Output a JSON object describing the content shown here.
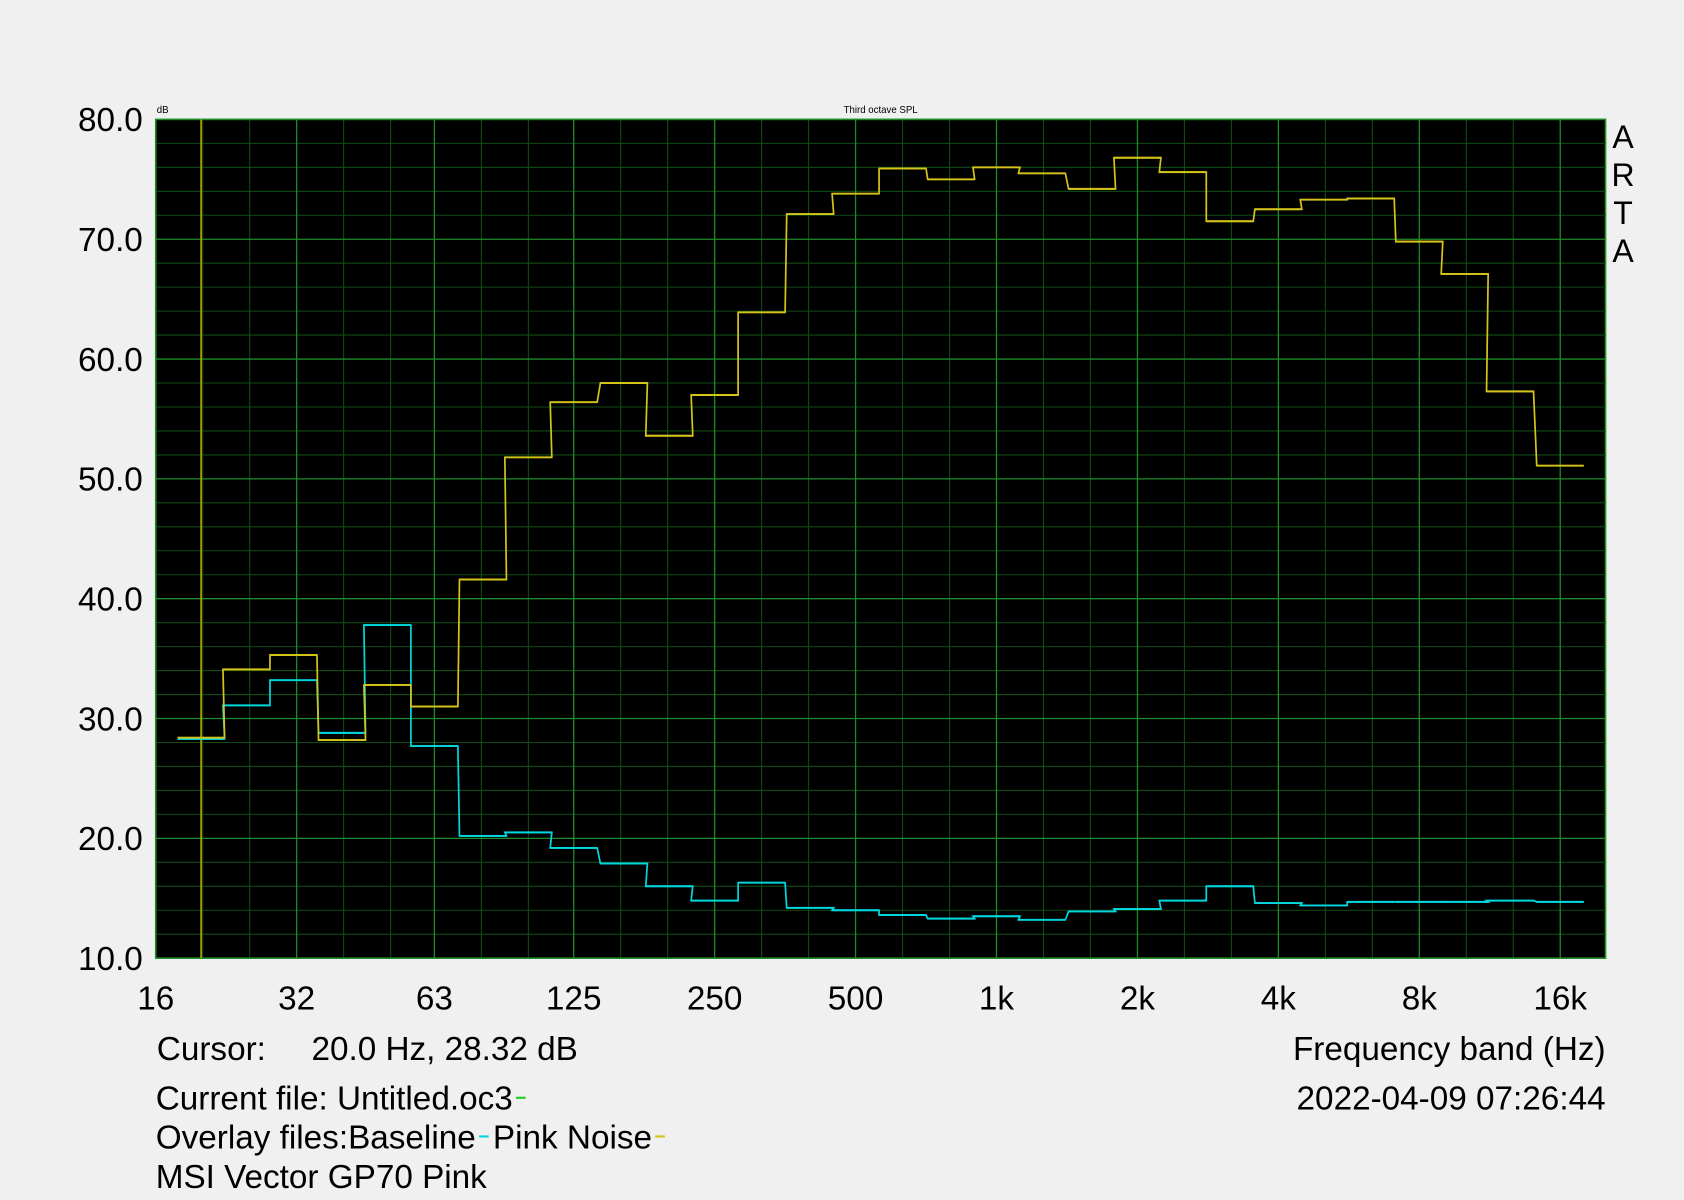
{
  "chart_data": {
    "type": "step",
    "title": "Third octave SPL",
    "y_unit": "dB",
    "xlabel": "Frequency band (Hz)",
    "watermark": "ARTA",
    "x_scale": "log",
    "grid": true,
    "xlim": [
      16,
      20000
    ],
    "ylim": [
      10,
      80
    ],
    "xticks": [
      16,
      32,
      63,
      125,
      250,
      500,
      {
        "value": 1000,
        "label": "1k"
      },
      {
        "value": 2000,
        "label": "2k"
      },
      {
        "value": 4000,
        "label": "4k"
      },
      {
        "value": 8000,
        "label": "8k"
      },
      {
        "value": 16000,
        "label": "16k"
      }
    ],
    "yticks": [
      {
        "value": 10,
        "label": "10.0"
      },
      {
        "value": 20,
        "label": "20.0"
      },
      {
        "value": 30,
        "label": "30.0"
      },
      {
        "value": 40,
        "label": "40.0"
      },
      {
        "value": 50,
        "label": "50.0"
      },
      {
        "value": 60,
        "label": "60.0"
      },
      {
        "value": 70,
        "label": "70.0"
      },
      {
        "value": 80,
        "label": "80.0"
      }
    ],
    "x": [
      20,
      25,
      31.5,
      40,
      50,
      63,
      80,
      100,
      125,
      160,
      200,
      250,
      315,
      400,
      500,
      630,
      800,
      1000,
      1250,
      1600,
      2000,
      2500,
      3150,
      4000,
      5000,
      6300,
      8000,
      10000,
      12500,
      16000
    ],
    "series": [
      {
        "name": "Baseline",
        "color": "#00d8e0",
        "values": [
          28.3,
          31.1,
          33.2,
          28.8,
          37.8,
          27.7,
          20.2,
          20.5,
          19.2,
          17.9,
          16.0,
          14.8,
          16.3,
          14.2,
          14.0,
          13.6,
          13.3,
          13.5,
          13.2,
          13.9,
          14.1,
          14.8,
          16.0,
          14.6,
          14.4,
          14.7,
          14.7,
          14.7,
          14.8,
          14.7
        ]
      },
      {
        "name": "Pink Noise",
        "color": "#d4c41a",
        "values": [
          28.4,
          34.1,
          35.3,
          28.2,
          32.8,
          31.0,
          41.6,
          51.8,
          56.4,
          58.0,
          53.6,
          57.0,
          63.9,
          72.1,
          73.8,
          75.9,
          75.0,
          76.0,
          75.5,
          74.2,
          76.8,
          75.6,
          71.5,
          72.5,
          73.3,
          73.4,
          69.8,
          67.1,
          57.3,
          51.1
        ]
      }
    ],
    "cursor_x": 20,
    "cursor_label": "Cursor:",
    "cursor_text": "20.0 Hz, 28.32 dB",
    "timestamp": "2022-04-09  07:26:44",
    "current_file": "Current file: Untitled.oc3",
    "overlay_label": "Overlay files: ",
    "note": "MSI Vector GP70 Pink"
  }
}
